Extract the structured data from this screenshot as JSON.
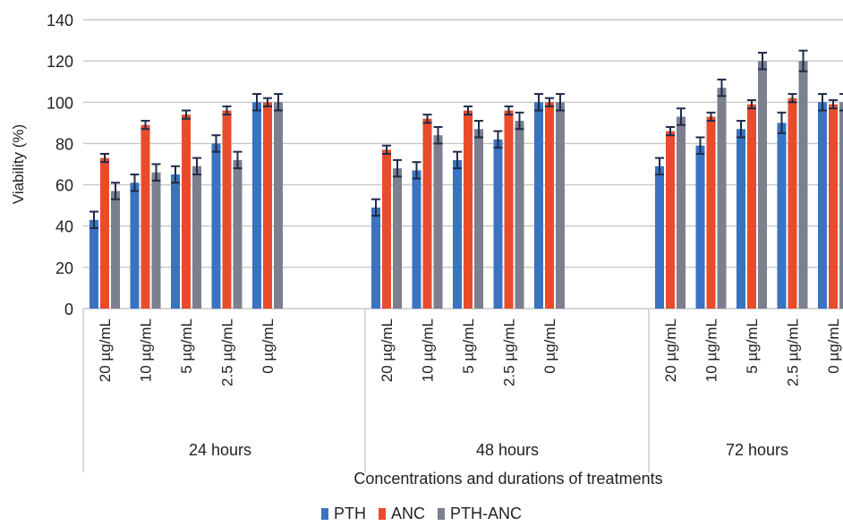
{
  "chart_data": {
    "type": "bar",
    "ylabel": "Viability (%)",
    "xlabel": "Concentrations and durations of treatments",
    "ylim": [
      0,
      140
    ],
    "yticks": [
      0,
      20,
      40,
      60,
      80,
      100,
      120,
      140
    ],
    "grid": true,
    "legend_position": "bottom",
    "groups": [
      {
        "label": "24 hours",
        "categories": [
          "20 µg/mL",
          "10 µg/mL",
          "5 µg/mL",
          "2.5 µg/mL",
          "0 µg/mL"
        ]
      },
      {
        "label": "48 hours",
        "categories": [
          "20 µg/mL",
          "10 µg/mL",
          "5 µg/mL",
          "2.5 µg/mL",
          "0 µg/mL"
        ]
      },
      {
        "label": "72 hours",
        "categories": [
          "20 µg/mL",
          "10 µg/mL",
          "5 µg/mL",
          "2.5 µg/mL",
          "0 µg/mL"
        ]
      }
    ],
    "series": [
      {
        "name": "PTH",
        "color": "#3a73c1",
        "values": [
          [
            43,
            61,
            65,
            80,
            100
          ],
          [
            49,
            67,
            72,
            82,
            100
          ],
          [
            69,
            79,
            87,
            90,
            100
          ]
        ],
        "errors": [
          [
            4,
            4,
            4,
            4,
            4
          ],
          [
            4,
            4,
            4,
            4,
            4
          ],
          [
            4,
            4,
            4,
            5,
            4
          ]
        ]
      },
      {
        "name": "ANC",
        "color": "#ea4c2b",
        "values": [
          [
            73,
            89,
            94,
            96,
            100
          ],
          [
            77,
            92,
            96,
            96,
            100
          ],
          [
            86,
            93,
            99,
            102,
            99
          ]
        ],
        "errors": [
          [
            2,
            2,
            2,
            2,
            2
          ],
          [
            2,
            2,
            2,
            2,
            2
          ],
          [
            2,
            2,
            2,
            2,
            2
          ]
        ]
      },
      {
        "name": "PTH-ANC",
        "color": "#7b7f8e",
        "values": [
          [
            57,
            66,
            69,
            72,
            100
          ],
          [
            68,
            84,
            87,
            91,
            100
          ],
          [
            93,
            107,
            120,
            120,
            100
          ]
        ],
        "errors": [
          [
            4,
            4,
            4,
            4,
            4
          ],
          [
            4,
            4,
            4,
            4,
            4
          ],
          [
            4,
            4,
            4,
            5,
            4
          ]
        ]
      }
    ]
  }
}
